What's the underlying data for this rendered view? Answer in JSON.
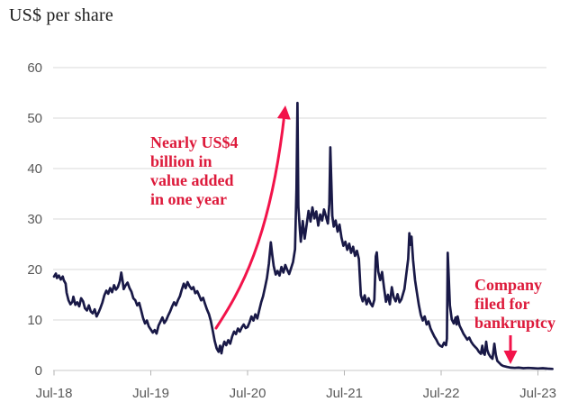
{
  "page": {
    "background": "#ffffff"
  },
  "colors": {
    "line": "#191947",
    "grid": "#d9d9d9",
    "axis_line": "#c8c8c8",
    "tick_mark": "#b3b3b3",
    "axis_text": "#595959",
    "annotation_text": "#dd1a3b",
    "annotation_arrow": "#f2134a",
    "title_text": "#1c1c1c"
  },
  "chart_data": {
    "type": "line",
    "title": "US$ per share",
    "legend": "none",
    "grid": "horizontal only",
    "x_axis": {
      "tick_labels": [
        "Jul-18",
        "Jul-19",
        "Jul-20",
        "Jul-21",
        "Jul-22",
        "Jul-23"
      ],
      "unit": "month-year",
      "range_years_after_jul_2018": [
        0,
        5.28
      ]
    },
    "y_axis": {
      "tick_values": [
        0,
        10,
        20,
        30,
        40,
        50,
        60
      ],
      "tick_labels": [
        "0",
        "10",
        "20",
        "30",
        "40",
        "50",
        "60"
      ],
      "min": 0,
      "max": 60,
      "label": "US$ per share"
    },
    "series": [
      {
        "name": "Share price, US$ per share",
        "color": "#191947",
        "x_unit": "years_after_Jul-2018",
        "key_events": [
          {
            "t": 0.0,
            "note": "starts ~US$18.6 (Jul-18)"
          },
          {
            "t": 1.06,
            "note": "trough ~US$7.3 (Aug-19)"
          },
          {
            "t": 1.73,
            "note": "crash low ~US$3.4 (spring 2020)"
          },
          {
            "t": 2.515,
            "note": "spike peak ~US$53 (Jan-21)"
          },
          {
            "t": 2.855,
            "note": "second spike ~US$44 (Jun-21)"
          },
          {
            "t": 4.068,
            "note": "spike ~US$23 (Aug-22)"
          },
          {
            "t": 5.15,
            "note": "ends ~US$0.3 after bankruptcy filing"
          }
        ],
        "points": [
          [
            0.0,
            18.6
          ],
          [
            0.02,
            19.2
          ],
          [
            0.03,
            18.3
          ],
          [
            0.05,
            18.8
          ],
          [
            0.07,
            18.0
          ],
          [
            0.09,
            18.6
          ],
          [
            0.1,
            17.9
          ],
          [
            0.12,
            17.2
          ],
          [
            0.13,
            15.4
          ],
          [
            0.15,
            13.9
          ],
          [
            0.17,
            13.1
          ],
          [
            0.19,
            13.6
          ],
          [
            0.2,
            14.6
          ],
          [
            0.22,
            13.0
          ],
          [
            0.24,
            13.5
          ],
          [
            0.26,
            12.7
          ],
          [
            0.28,
            14.3
          ],
          [
            0.3,
            13.7
          ],
          [
            0.32,
            12.3
          ],
          [
            0.34,
            11.9
          ],
          [
            0.36,
            12.9
          ],
          [
            0.38,
            11.7
          ],
          [
            0.4,
            11.3
          ],
          [
            0.42,
            12.1
          ],
          [
            0.44,
            10.7
          ],
          [
            0.46,
            11.5
          ],
          [
            0.48,
            12.4
          ],
          [
            0.5,
            13.5
          ],
          [
            0.52,
            14.9
          ],
          [
            0.54,
            15.8
          ],
          [
            0.56,
            15.2
          ],
          [
            0.58,
            16.3
          ],
          [
            0.6,
            15.5
          ],
          [
            0.62,
            16.9
          ],
          [
            0.64,
            16.0
          ],
          [
            0.66,
            16.5
          ],
          [
            0.68,
            17.7
          ],
          [
            0.695,
            19.4
          ],
          [
            0.71,
            17.6
          ],
          [
            0.72,
            16.1
          ],
          [
            0.74,
            16.9
          ],
          [
            0.76,
            17.4
          ],
          [
            0.78,
            16.3
          ],
          [
            0.8,
            15.6
          ],
          [
            0.82,
            14.3
          ],
          [
            0.84,
            13.9
          ],
          [
            0.86,
            12.9
          ],
          [
            0.88,
            13.4
          ],
          [
            0.9,
            11.9
          ],
          [
            0.92,
            10.4
          ],
          [
            0.94,
            9.3
          ],
          [
            0.96,
            9.9
          ],
          [
            0.98,
            8.7
          ],
          [
            1.0,
            8.1
          ],
          [
            1.02,
            7.5
          ],
          [
            1.04,
            8.0
          ],
          [
            1.06,
            7.3
          ],
          [
            1.08,
            8.9
          ],
          [
            1.1,
            9.7
          ],
          [
            1.12,
            10.5
          ],
          [
            1.14,
            9.4
          ],
          [
            1.16,
            10.0
          ],
          [
            1.18,
            10.9
          ],
          [
            1.2,
            11.7
          ],
          [
            1.22,
            12.7
          ],
          [
            1.24,
            13.5
          ],
          [
            1.26,
            12.9
          ],
          [
            1.28,
            13.9
          ],
          [
            1.3,
            14.7
          ],
          [
            1.32,
            16.0
          ],
          [
            1.34,
            17.2
          ],
          [
            1.36,
            16.3
          ],
          [
            1.38,
            17.5
          ],
          [
            1.4,
            16.7
          ],
          [
            1.42,
            16.1
          ],
          [
            1.44,
            16.5
          ],
          [
            1.46,
            15.3
          ],
          [
            1.48,
            15.7
          ],
          [
            1.5,
            14.8
          ],
          [
            1.52,
            13.9
          ],
          [
            1.54,
            14.4
          ],
          [
            1.56,
            13.2
          ],
          [
            1.58,
            12.1
          ],
          [
            1.6,
            11.2
          ],
          [
            1.62,
            9.8
          ],
          [
            1.64,
            7.9
          ],
          [
            1.66,
            5.9
          ],
          [
            1.68,
            4.4
          ],
          [
            1.7,
            3.7
          ],
          [
            1.715,
            4.9
          ],
          [
            1.73,
            3.4
          ],
          [
            1.74,
            4.5
          ],
          [
            1.76,
            5.7
          ],
          [
            1.78,
            5.0
          ],
          [
            1.8,
            6.0
          ],
          [
            1.82,
            5.3
          ],
          [
            1.84,
            6.7
          ],
          [
            1.86,
            7.7
          ],
          [
            1.88,
            7.2
          ],
          [
            1.9,
            8.3
          ],
          [
            1.92,
            7.7
          ],
          [
            1.94,
            8.5
          ],
          [
            1.96,
            9.1
          ],
          [
            1.98,
            8.4
          ],
          [
            2.0,
            8.6
          ],
          [
            2.02,
            9.5
          ],
          [
            2.04,
            10.7
          ],
          [
            2.06,
            9.9
          ],
          [
            2.08,
            11.1
          ],
          [
            2.1,
            10.3
          ],
          [
            2.12,
            11.9
          ],
          [
            2.14,
            13.5
          ],
          [
            2.16,
            14.7
          ],
          [
            2.18,
            16.5
          ],
          [
            2.2,
            18.3
          ],
          [
            2.22,
            21.2
          ],
          [
            2.24,
            25.4
          ],
          [
            2.255,
            22.9
          ],
          [
            2.27,
            20.7
          ],
          [
            2.29,
            19.0
          ],
          [
            2.31,
            19.7
          ],
          [
            2.33,
            18.8
          ],
          [
            2.35,
            20.5
          ],
          [
            2.37,
            19.4
          ],
          [
            2.39,
            20.9
          ],
          [
            2.41,
            19.9
          ],
          [
            2.43,
            19.1
          ],
          [
            2.45,
            20.3
          ],
          [
            2.47,
            21.5
          ],
          [
            2.49,
            24.0
          ],
          [
            2.505,
            36.0
          ],
          [
            2.515,
            53.0
          ],
          [
            2.525,
            32.5
          ],
          [
            2.54,
            27.8
          ],
          [
            2.55,
            25.5
          ],
          [
            2.57,
            29.6
          ],
          [
            2.59,
            26.1
          ],
          [
            2.61,
            28.9
          ],
          [
            2.63,
            31.6
          ],
          [
            2.65,
            29.5
          ],
          [
            2.67,
            32.3
          ],
          [
            2.69,
            30.1
          ],
          [
            2.71,
            31.5
          ],
          [
            2.73,
            28.7
          ],
          [
            2.75,
            30.9
          ],
          [
            2.77,
            29.7
          ],
          [
            2.79,
            31.9
          ],
          [
            2.81,
            30.5
          ],
          [
            2.83,
            29.1
          ],
          [
            2.845,
            33.0
          ],
          [
            2.855,
            44.2
          ],
          [
            2.865,
            37.5
          ],
          [
            2.875,
            30.6
          ],
          [
            2.89,
            28.5
          ],
          [
            2.91,
            29.7
          ],
          [
            2.93,
            27.5
          ],
          [
            2.95,
            28.9
          ],
          [
            2.97,
            26.3
          ],
          [
            2.99,
            24.7
          ],
          [
            3.01,
            25.5
          ],
          [
            3.03,
            23.9
          ],
          [
            3.05,
            25.1
          ],
          [
            3.07,
            23.3
          ],
          [
            3.09,
            24.5
          ],
          [
            3.11,
            22.7
          ],
          [
            3.13,
            23.7
          ],
          [
            3.15,
            22.1
          ],
          [
            3.17,
            14.9
          ],
          [
            3.19,
            13.7
          ],
          [
            3.21,
            14.9
          ],
          [
            3.23,
            13.1
          ],
          [
            3.25,
            14.3
          ],
          [
            3.27,
            13.3
          ],
          [
            3.29,
            12.7
          ],
          [
            3.31,
            14.0
          ],
          [
            3.325,
            22.6
          ],
          [
            3.335,
            23.4
          ],
          [
            3.35,
            19.6
          ],
          [
            3.37,
            17.9
          ],
          [
            3.39,
            19.5
          ],
          [
            3.41,
            16.3
          ],
          [
            3.43,
            13.6
          ],
          [
            3.45,
            15.0
          ],
          [
            3.47,
            13.1
          ],
          [
            3.49,
            16.5
          ],
          [
            3.51,
            14.5
          ],
          [
            3.53,
            13.7
          ],
          [
            3.55,
            15.1
          ],
          [
            3.57,
            13.5
          ],
          [
            3.59,
            14.1
          ],
          [
            3.62,
            16.1
          ],
          [
            3.64,
            19.1
          ],
          [
            3.66,
            22.1
          ],
          [
            3.672,
            27.2
          ],
          [
            3.684,
            24.9
          ],
          [
            3.694,
            26.5
          ],
          [
            3.71,
            21.9
          ],
          [
            3.73,
            17.9
          ],
          [
            3.75,
            15.4
          ],
          [
            3.77,
            12.9
          ],
          [
            3.79,
            11.0
          ],
          [
            3.81,
            9.9
          ],
          [
            3.83,
            10.7
          ],
          [
            3.85,
            9.1
          ],
          [
            3.87,
            9.7
          ],
          [
            3.89,
            8.3
          ],
          [
            3.91,
            7.5
          ],
          [
            3.93,
            6.7
          ],
          [
            3.95,
            6.1
          ],
          [
            3.97,
            5.3
          ],
          [
            3.99,
            4.9
          ],
          [
            4.01,
            4.7
          ],
          [
            4.03,
            5.5
          ],
          [
            4.05,
            5.0
          ],
          [
            4.06,
            6.3
          ],
          [
            4.068,
            23.3
          ],
          [
            4.08,
            17.8
          ],
          [
            4.09,
            12.9
          ],
          [
            4.11,
            10.1
          ],
          [
            4.13,
            9.3
          ],
          [
            4.15,
            10.5
          ],
          [
            4.16,
            9.1
          ],
          [
            4.17,
            10.7
          ],
          [
            4.19,
            8.9
          ],
          [
            4.21,
            8.1
          ],
          [
            4.23,
            7.3
          ],
          [
            4.25,
            6.7
          ],
          [
            4.27,
            6.1
          ],
          [
            4.29,
            6.5
          ],
          [
            4.31,
            5.7
          ],
          [
            4.33,
            5.1
          ],
          [
            4.35,
            4.7
          ],
          [
            4.37,
            4.3
          ],
          [
            4.39,
            3.7
          ],
          [
            4.41,
            3.3
          ],
          [
            4.425,
            4.9
          ],
          [
            4.435,
            3.5
          ],
          [
            4.45,
            3.1
          ],
          [
            4.465,
            5.7
          ],
          [
            4.475,
            4.1
          ],
          [
            4.49,
            3.3
          ],
          [
            4.51,
            2.7
          ],
          [
            4.53,
            2.3
          ],
          [
            4.55,
            5.3
          ],
          [
            4.565,
            3.1
          ],
          [
            4.58,
            1.9
          ],
          [
            4.6,
            1.5
          ],
          [
            4.62,
            1.1
          ],
          [
            4.64,
            0.9
          ],
          [
            4.68,
            0.7
          ],
          [
            4.72,
            0.55
          ],
          [
            4.76,
            0.5
          ],
          [
            4.8,
            0.55
          ],
          [
            4.85,
            0.45
          ],
          [
            4.9,
            0.5
          ],
          [
            4.95,
            0.45
          ],
          [
            5.0,
            0.4
          ],
          [
            5.05,
            0.45
          ],
          [
            5.1,
            0.35
          ],
          [
            5.15,
            0.3
          ]
        ]
      }
    ],
    "annotations": [
      {
        "text": "Nearly US$4 billion in value added in one year",
        "color": "#dd1a3b",
        "arrow": "curved red arrow from mid-2020 trough (~US$8) up to Jan-2021 peak (~US$53)"
      },
      {
        "text": "Company filed for bankruptcy",
        "color": "#dd1a3b",
        "arrow": "straight red arrow pointing down at price ~US$0.3 in spring 2023"
      }
    ]
  },
  "annotations": {
    "growth": {
      "lines": [
        "Nearly US$4",
        "billion in",
        "value added",
        "in one year"
      ]
    },
    "bankruptcy": {
      "lines": [
        "Company",
        "filed for",
        "bankruptcy"
      ]
    }
  }
}
